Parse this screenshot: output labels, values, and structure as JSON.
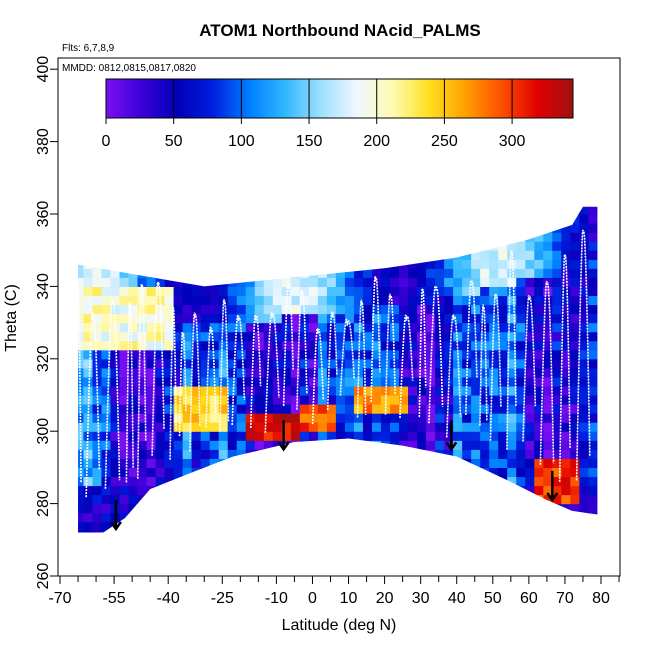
{
  "chart_data": {
    "type": "heatmap",
    "title": "ATOM1 Northbound NAcid_PALMS",
    "flights_label": "Flts: 6,7,8,9",
    "dates_label": "MMDD: 0812,0815,0817,0820",
    "xlabel": "Latitude (deg N)",
    "ylabel": "Theta (C)",
    "xlim": [
      -70,
      85
    ],
    "ylim": [
      260,
      405
    ],
    "x_ticks": [
      -70,
      -55,
      -40,
      -25,
      -10,
      0,
      10,
      20,
      30,
      40,
      50,
      60,
      70,
      80
    ],
    "x_tick_labels": [
      "-70",
      "-55",
      "-40",
      "-25",
      "-10",
      "0",
      "10",
      "20",
      "30",
      "40",
      "50",
      "60",
      "70",
      "80"
    ],
    "x_minor_ticks": [
      -65,
      -60,
      -50,
      -45,
      -35,
      -30,
      -20,
      -15,
      -5,
      5,
      15,
      25,
      35,
      45,
      55,
      65,
      75,
      85
    ],
    "y_ticks": [
      260,
      280,
      300,
      320,
      340,
      360,
      380,
      400
    ],
    "y_tick_labels": [
      "260",
      "280",
      "300",
      "320",
      "340",
      "360",
      "380",
      "400"
    ],
    "colorbar": {
      "range": [
        0,
        345
      ],
      "ticks": [
        0,
        50,
        100,
        150,
        200,
        250,
        300
      ],
      "tick_labels": [
        "0",
        "50",
        "100",
        "150",
        "200",
        "250",
        "300"
      ],
      "colors": [
        "#7a10f0",
        "#3a00d8",
        "#0000b8",
        "#0020e0",
        "#0080ff",
        "#30b8ff",
        "#a0e0ff",
        "#f0f8ff",
        "#fffab0",
        "#ffe020",
        "#ffa000",
        "#ff5000",
        "#e00000",
        "#a01010"
      ]
    },
    "domain_upper_boundary": [
      [
        -65,
        346
      ],
      [
        -30,
        340
      ],
      [
        0,
        343
      ],
      [
        20,
        345
      ],
      [
        40,
        348
      ],
      [
        60,
        353
      ],
      [
        72,
        357
      ],
      [
        75,
        362
      ]
    ],
    "domain_lower_boundary": [
      [
        -65,
        272
      ],
      [
        -58,
        272
      ],
      [
        -52,
        276
      ],
      [
        -45,
        284
      ],
      [
        -35,
        288
      ],
      [
        -22,
        293
      ],
      [
        -5,
        297
      ],
      [
        10,
        298
      ],
      [
        25,
        296
      ],
      [
        40,
        293
      ],
      [
        55,
        286
      ],
      [
        65,
        281
      ],
      [
        72,
        278
      ],
      [
        79,
        277
      ]
    ],
    "hot_bands": [
      {
        "x": [
          -20,
          -5
        ],
        "y": [
          296,
          304
        ],
        "value": 320
      },
      {
        "x": [
          -5,
          5
        ],
        "y": [
          298,
          306
        ],
        "value": 290
      },
      {
        "x": [
          -40,
          -25
        ],
        "y": [
          300,
          310
        ],
        "value": 240
      },
      {
        "x": [
          60,
          72
        ],
        "y": [
          278,
          292
        ],
        "value": 300
      },
      {
        "x": [
          10,
          25
        ],
        "y": [
          305,
          312
        ],
        "value": 270
      }
    ],
    "arrows": [
      {
        "x": -54.5,
        "theta": 277
      },
      {
        "x": -8,
        "theta": 299
      },
      {
        "x": 38.5,
        "theta": 299
      },
      {
        "x": 66.5,
        "theta": 285
      }
    ]
  }
}
